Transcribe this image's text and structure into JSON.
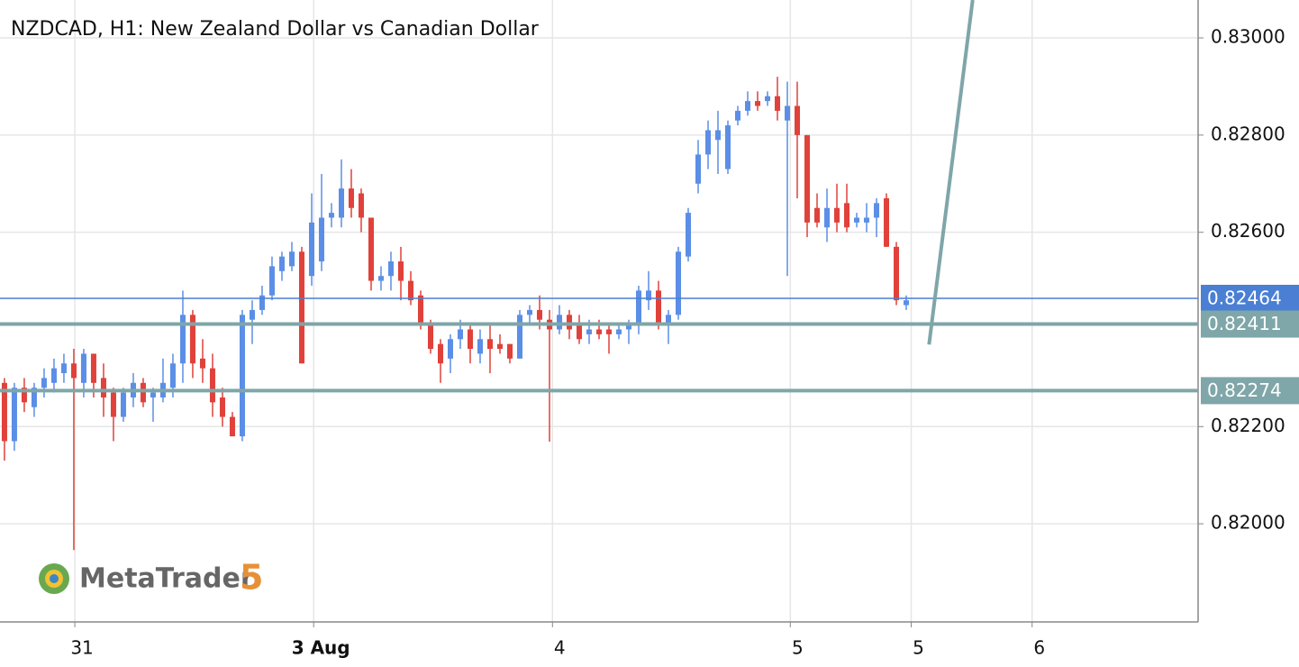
{
  "chart_data": {
    "type": "candlestick",
    "title": "NZDCAD, H1: New Zealand Dollar vs Canadian Dollar",
    "up_color": "#5b8ee6",
    "down_color": "#e0413a",
    "open": [
      0.8229,
      0.8217,
      0.8228,
      0.8224,
      0.8228,
      0.8229,
      0.8231,
      0.8233,
      0.8229,
      0.8235,
      0.823,
      0.8227,
      0.8222,
      0.8226,
      0.8229,
      0.8226,
      0.8226,
      0.8228,
      0.8233,
      0.8243,
      0.8234,
      0.8232,
      0.8226,
      0.8222,
      0.8218,
      0.8242,
      0.8244,
      0.8247,
      0.8252,
      0.8253,
      0.8256,
      0.8251,
      0.8254,
      0.8263,
      0.8263,
      0.8269,
      0.8268,
      0.8263,
      0.825,
      0.8251,
      0.8254,
      0.825,
      0.8247,
      0.8241,
      0.8237,
      0.8234,
      0.8238,
      0.824,
      0.8235,
      0.8238,
      0.8237,
      0.8237,
      0.8234,
      0.8243,
      0.8244,
      0.8242,
      0.824,
      0.8243,
      0.8241,
      0.8239,
      0.824,
      0.824,
      0.8239,
      0.824,
      0.8241,
      0.8246,
      0.8248,
      0.8241,
      0.8243,
      0.8255,
      0.827,
      0.8276,
      0.8279,
      0.8273,
      0.8283,
      0.8285,
      0.8287,
      0.8287,
      0.8288,
      0.8283,
      0.8286,
      0.828,
      0.8265,
      0.8261,
      0.8265,
      0.8266,
      0.8262,
      0.8262,
      0.8263,
      0.8267,
      0.8257,
      0.8245
    ],
    "high": [
      0.823,
      0.8229,
      0.823,
      0.8229,
      0.8232,
      0.8234,
      0.8235,
      0.8236,
      0.8236,
      0.8235,
      0.8233,
      0.8228,
      0.8228,
      0.8231,
      0.823,
      0.8228,
      0.8234,
      0.8235,
      0.8248,
      0.8244,
      0.8238,
      0.8235,
      0.8228,
      0.8223,
      0.8244,
      0.8246,
      0.8249,
      0.8255,
      0.8256,
      0.8258,
      0.8257,
      0.8268,
      0.8272,
      0.8266,
      0.8275,
      0.8273,
      0.8269,
      0.8263,
      0.8253,
      0.8256,
      0.8257,
      0.8252,
      0.8248,
      0.8242,
      0.8238,
      0.8239,
      0.8242,
      0.8241,
      0.824,
      0.8241,
      0.8239,
      0.8237,
      0.8244,
      0.8245,
      0.8247,
      0.8244,
      0.8245,
      0.8244,
      0.8243,
      0.8242,
      0.8242,
      0.8241,
      0.8241,
      0.8242,
      0.8249,
      0.8252,
      0.825,
      0.8244,
      0.8257,
      0.8265,
      0.8279,
      0.8283,
      0.8285,
      0.8283,
      0.8286,
      0.8289,
      0.8289,
      0.8289,
      0.8292,
      0.8291,
      0.8291,
      0.828,
      0.8268,
      0.8269,
      0.827,
      0.827,
      0.8264,
      0.8266,
      0.8267,
      0.8268,
      0.8258,
      0.8247
    ],
    "low": [
      0.8213,
      0.8215,
      0.8223,
      0.8222,
      0.8226,
      0.8227,
      0.8229,
      0.81946,
      0.8226,
      0.8226,
      0.8222,
      0.8217,
      0.8221,
      0.8224,
      0.8224,
      0.8221,
      0.8225,
      0.8226,
      0.8229,
      0.823,
      0.8229,
      0.8222,
      0.822,
      0.8218,
      0.8217,
      0.8237,
      0.8243,
      0.8246,
      0.825,
      0.8252,
      0.8233,
      0.8249,
      0.8252,
      0.8261,
      0.8261,
      0.8263,
      0.826,
      0.8248,
      0.8248,
      0.8248,
      0.8246,
      0.8245,
      0.824,
      0.8235,
      0.8229,
      0.8231,
      0.8236,
      0.8233,
      0.8233,
      0.8231,
      0.8235,
      0.8233,
      0.8234,
      0.8241,
      0.824,
      0.82169,
      0.8239,
      0.8238,
      0.8237,
      0.8237,
      0.8238,
      0.8235,
      0.8238,
      0.8237,
      0.8239,
      0.8244,
      0.824,
      0.8237,
      0.8242,
      0.8254,
      0.8268,
      0.8273,
      0.8272,
      0.8272,
      0.8282,
      0.8284,
      0.8285,
      0.8286,
      0.8283,
      0.8251,
      0.8267,
      0.8259,
      0.8261,
      0.8258,
      0.826,
      0.826,
      0.8261,
      0.826,
      0.8259,
      0.8257,
      0.8245,
      0.8244
    ],
    "close": [
      0.8217,
      0.8228,
      0.8225,
      0.8228,
      0.823,
      0.8232,
      0.8233,
      0.823,
      0.8235,
      0.8229,
      0.8226,
      0.8222,
      0.8227,
      0.8229,
      0.8225,
      0.8227,
      0.8229,
      0.8233,
      0.8243,
      0.8233,
      0.8232,
      0.8225,
      0.8222,
      0.8218,
      0.8243,
      0.8244,
      0.8247,
      0.8253,
      0.8255,
      0.8256,
      0.8233,
      0.8262,
      0.8263,
      0.8264,
      0.8269,
      0.8265,
      0.8263,
      0.825,
      0.8251,
      0.8254,
      0.825,
      0.8246,
      0.8241,
      0.8236,
      0.8233,
      0.8238,
      0.824,
      0.8236,
      0.8238,
      0.8236,
      0.8236,
      0.8234,
      0.8243,
      0.8244,
      0.8242,
      0.824,
      0.8243,
      0.824,
      0.8238,
      0.824,
      0.8239,
      0.8239,
      0.824,
      0.8241,
      0.8248,
      0.8248,
      0.8241,
      0.8243,
      0.8256,
      0.8264,
      0.8276,
      0.8281,
      0.8281,
      0.8282,
      0.8285,
      0.8287,
      0.8286,
      0.8288,
      0.8285,
      0.8286,
      0.828,
      0.8262,
      0.8262,
      0.8265,
      0.8262,
      0.8261,
      0.8263,
      0.8263,
      0.8266,
      0.8257,
      0.8246,
      0.8246
    ],
    "xlim": [
      -0.45,
      120.45
    ],
    "xticks": [
      {
        "value": 7.1,
        "label": "31"
      },
      {
        "value": 31.2,
        "label": "3 Aug",
        "bold": true
      },
      {
        "value": 55.3,
        "label": "4"
      },
      {
        "value": 79.3,
        "label": "5"
      },
      {
        "value": 91.5,
        "label": "5"
      },
      {
        "value": 103.7,
        "label": "6"
      }
    ],
    "ylim": [
      0.81798,
      0.83078
    ],
    "yticks": [
      {
        "value": 0.82,
        "label": "0.82000"
      },
      {
        "value": 0.822,
        "label": "0.82200"
      },
      {
        "value": 0.826,
        "label": "0.82600"
      },
      {
        "value": 0.828,
        "label": "0.82800"
      },
      {
        "value": 0.83,
        "label": "0.83000"
      }
    ],
    "grid": true,
    "levels": [
      {
        "value": 0.82464,
        "label": "0.82464",
        "color": "#4a7fd4",
        "width": 1.5
      },
      {
        "value": 0.82411,
        "label": "0.82411",
        "color": "#7fa6a8",
        "width": 4
      },
      {
        "value": 0.82274,
        "label": "0.82274",
        "color": "#7fa6a8",
        "width": 4
      }
    ],
    "trendline": {
      "x": [
        93.3,
        97.7
      ],
      "y": [
        0.82369,
        0.83078
      ],
      "color": "#7fa6a8"
    },
    "logo": {
      "name": "MetaTrader",
      "version": "5"
    }
  }
}
